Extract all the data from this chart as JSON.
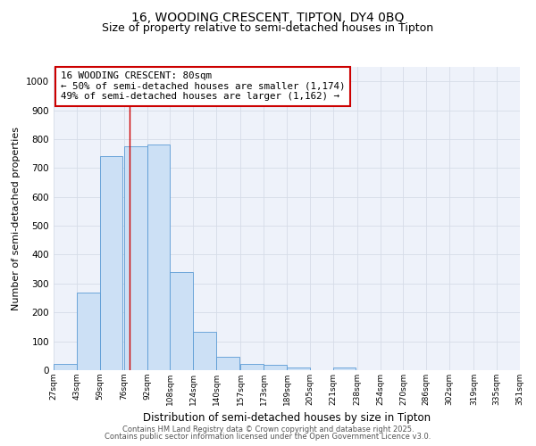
{
  "title1": "16, WOODING CRESCENT, TIPTON, DY4 0BQ",
  "title2": "Size of property relative to semi-detached houses in Tipton",
  "xlabel": "Distribution of semi-detached houses by size in Tipton",
  "ylabel": "Number of semi-detached properties",
  "bar_color": "#cce0f5",
  "bar_edge_color": "#5b9bd5",
  "bar_left_edges": [
    27,
    43,
    59,
    76,
    92,
    108,
    124,
    140,
    157,
    173,
    189,
    205,
    221,
    238,
    254,
    270,
    286,
    302,
    319,
    335
  ],
  "bar_widths": [
    16,
    16,
    16,
    16,
    16,
    16,
    16,
    16,
    16,
    16,
    16,
    16,
    16,
    16,
    16,
    16,
    16,
    16,
    16,
    16
  ],
  "bar_heights": [
    22,
    270,
    740,
    775,
    780,
    340,
    133,
    47,
    22,
    18,
    10,
    0,
    9,
    0,
    0,
    0,
    0,
    0,
    0,
    0
  ],
  "tick_labels": [
    "27sqm",
    "43sqm",
    "59sqm",
    "76sqm",
    "92sqm",
    "108sqm",
    "124sqm",
    "140sqm",
    "157sqm",
    "173sqm",
    "189sqm",
    "205sqm",
    "221sqm",
    "238sqm",
    "254sqm",
    "270sqm",
    "286sqm",
    "302sqm",
    "335sqm",
    "351sqm"
  ],
  "tick_positions": [
    27,
    43,
    59,
    76,
    92,
    108,
    124,
    140,
    157,
    173,
    189,
    205,
    221,
    238,
    254,
    270,
    286,
    302,
    335,
    351
  ],
  "all_tick_labels": [
    "27sqm",
    "43sqm",
    "59sqm",
    "76sqm",
    "92sqm",
    "108sqm",
    "124sqm",
    "140sqm",
    "157sqm",
    "173sqm",
    "189sqm",
    "205sqm",
    "221sqm",
    "238sqm",
    "254sqm",
    "270sqm",
    "286sqm",
    "302sqm",
    "319sqm",
    "335sqm",
    "351sqm"
  ],
  "all_tick_positions": [
    27,
    43,
    59,
    76,
    92,
    108,
    124,
    140,
    157,
    173,
    189,
    205,
    221,
    238,
    254,
    270,
    286,
    302,
    319,
    335,
    351
  ],
  "vline_x": 80,
  "vline_color": "#cc0000",
  "annotation_title": "16 WOODING CRESCENT: 80sqm",
  "annotation_line1": "← 50% of semi-detached houses are smaller (1,174)",
  "annotation_line2": "49% of semi-detached houses are larger (1,162) →",
  "annotation_box_color": "#cc0000",
  "ylim": [
    0,
    1050
  ],
  "xlim": [
    27,
    351
  ],
  "grid_color": "#d5dce8",
  "bg_color": "#eef2fa",
  "footnote1": "Contains HM Land Registry data © Crown copyright and database right 2025.",
  "footnote2": "Contains public sector information licensed under the Open Government Licence v3.0.",
  "title_fontsize": 10,
  "subtitle_fontsize": 9,
  "annotation_fontsize": 7.8,
  "ylabel_fontsize": 8,
  "xlabel_fontsize": 8.5,
  "tick_fontsize": 6.5,
  "footnote_fontsize": 6
}
